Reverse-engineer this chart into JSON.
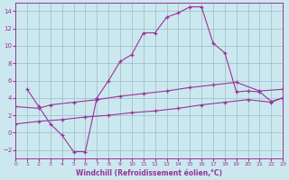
{
  "xlabel": "Windchill (Refroidissement éolien,°C)",
  "ylabel": "",
  "background_color": "#cce8ef",
  "line_color": "#993399",
  "grid_color": "#99bbcc",
  "xmin": 0,
  "xmax": 23,
  "ymin": -3,
  "ymax": 15,
  "yticks": [
    -2,
    0,
    2,
    4,
    6,
    8,
    10,
    12,
    14
  ],
  "xticks": [
    0,
    1,
    2,
    3,
    4,
    5,
    6,
    7,
    8,
    9,
    10,
    11,
    12,
    13,
    14,
    15,
    16,
    17,
    18,
    19,
    20,
    21,
    22,
    23
  ],
  "line1_x": [
    1,
    2,
    3,
    4,
    5,
    6,
    7,
    8,
    9,
    10,
    11,
    12,
    13,
    14,
    15,
    16,
    17,
    18,
    19,
    20,
    21,
    22,
    23
  ],
  "line1_y": [
    5,
    3,
    1,
    -0.3,
    -2.2,
    -2.2,
    4.0,
    6.0,
    8.2,
    9.0,
    11.5,
    11.5,
    13.3,
    13.8,
    14.5,
    14.5,
    10.3,
    9.2,
    4.7,
    4.8,
    4.7,
    3.6,
    4.0
  ],
  "line2_x": [
    0,
    2,
    3,
    5,
    7,
    9,
    11,
    13,
    15,
    17,
    19,
    21,
    23
  ],
  "line2_y": [
    3,
    2.8,
    3.2,
    3.5,
    3.8,
    4.2,
    4.5,
    4.8,
    5.2,
    5.5,
    5.8,
    4.8,
    5.0
  ],
  "line3_x": [
    0,
    2,
    4,
    6,
    8,
    10,
    12,
    14,
    16,
    18,
    20,
    22,
    23
  ],
  "line3_y": [
    1.0,
    1.3,
    1.5,
    1.8,
    2.0,
    2.3,
    2.5,
    2.8,
    3.2,
    3.5,
    3.8,
    3.5,
    4.0
  ]
}
